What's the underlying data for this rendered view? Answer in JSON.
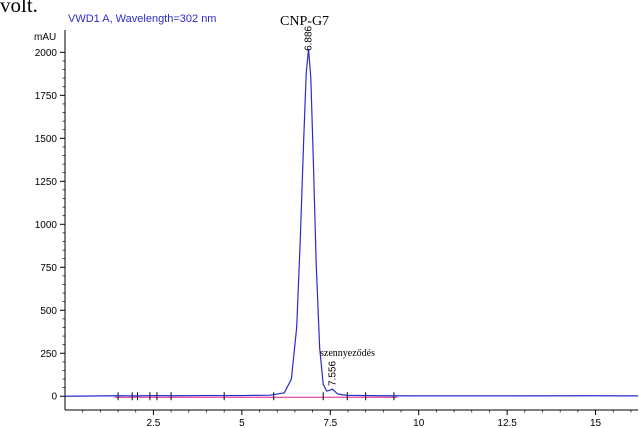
{
  "page_text": {
    "top_fragment": "volt."
  },
  "chart_data": {
    "type": "line",
    "title": "VWD1 A, Wavelength=302 nm",
    "ylabel": "mAU",
    "xlabel": "",
    "xlim": [
      0,
      16.2
    ],
    "ylim": [
      -80,
      2130
    ],
    "x_ticks": [
      2.5,
      5,
      7.5,
      10,
      12.5,
      15
    ],
    "x_tick_labels": [
      "2.5",
      "5",
      "7.5",
      "10",
      "12.5",
      "15"
    ],
    "y_ticks": [
      0,
      250,
      500,
      750,
      1000,
      1250,
      1500,
      1750,
      2000
    ],
    "y_tick_labels": [
      "0",
      "250",
      "500",
      "750",
      "1000",
      "1250",
      "1500",
      "1750",
      "2000"
    ],
    "grid": false,
    "legend": "none",
    "colors": {
      "signal": "#2b2bc8",
      "baseline": "#e0208c",
      "title": "#2b2bc8",
      "axis": "#000000"
    },
    "series": [
      {
        "x": [
          0,
          1.5,
          2.0,
          2.5,
          3.0,
          4.0,
          5.0,
          5.8,
          6.2,
          6.4,
          6.55,
          6.65,
          6.75,
          6.82,
          6.886,
          6.95,
          7.02,
          7.1,
          7.2,
          7.3,
          7.4,
          7.5,
          7.556,
          7.62,
          7.7,
          7.85,
          8.0,
          9.0,
          10.0,
          12.5,
          15.0,
          16.2
        ],
        "y": [
          0,
          3,
          2,
          4,
          3,
          4,
          4,
          6,
          20,
          100,
          400,
          900,
          1500,
          1880,
          2020,
          1850,
          1380,
          780,
          280,
          70,
          30,
          35,
          42,
          30,
          15,
          8,
          5,
          3,
          2,
          2,
          3,
          2
        ]
      }
    ],
    "peaks": [
      {
        "rt": "6.886",
        "x": 6.886,
        "y": 2020,
        "label": "CNP-G7"
      },
      {
        "rt": "7.556",
        "x": 7.556,
        "y": 42,
        "label": "szennyeződés"
      }
    ],
    "integration_marks_x": [
      1.5,
      1.9,
      2.05,
      2.4,
      2.6,
      3.0,
      4.5,
      5.9,
      7.3,
      7.98,
      8.5,
      9.3
    ]
  }
}
